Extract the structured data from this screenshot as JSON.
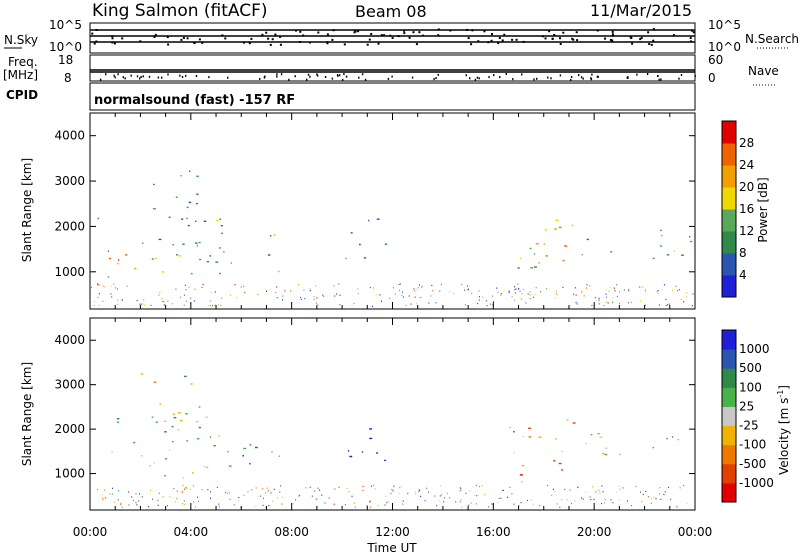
{
  "header": {
    "station": "King Salmon (fitACF)",
    "beam": "Beam 08",
    "date": "11/Mar/2015"
  },
  "top_panels": {
    "nsky_label": "N.Sky",
    "nsky_ticks": [
      "10^5",
      "10^0"
    ],
    "nsearch_label": "N.Search",
    "nsearch_ticks": [
      "10^5",
      "10^0"
    ],
    "freq_label": "Freq.",
    "freq_unit": "[MHz]",
    "freq_ticks": [
      "18",
      "8"
    ],
    "nave_label": "Nave",
    "nave_ticks": [
      "60",
      "0"
    ],
    "cpid_label": "CPID",
    "cpid_text": "normalsound (fast) -157 RF"
  },
  "colors": {
    "power_scale": [
      "#1f1fd8",
      "#2a55b0",
      "#2f8a4a",
      "#5aa85a",
      "#f0d800",
      "#f0a000",
      "#f06400",
      "#e00000"
    ],
    "velocity_scale": [
      "#1f1fd8",
      "#2a55b0",
      "#2f8a4a",
      "#4ab24a",
      "#c8c8c8",
      "#f0b400",
      "#f07800",
      "#e04000",
      "#e00000"
    ]
  },
  "chart_data": [
    {
      "type": "heatmap",
      "title": "",
      "ylabel": "Slant Range [km]",
      "xlabel": "",
      "ylim": [
        180,
        4500
      ],
      "yticks": [
        "1000",
        "2000",
        "3000",
        "4000"
      ],
      "colorbar_label": "Power [dB]",
      "colorbar_ticks": [
        "4",
        "8",
        "12",
        "16",
        "20",
        "24",
        "28"
      ],
      "patches": [
        {
          "t0": 0.3,
          "t1": 5.6,
          "r0": 900,
          "r1": 2300,
          "level": 0.35
        },
        {
          "t0": 0.5,
          "t1": 5.2,
          "r0": 1000,
          "r1": 1400,
          "level": 0.75
        },
        {
          "t0": 2.0,
          "t1": 4.5,
          "r0": 2000,
          "r1": 3300,
          "level": 0.25
        },
        {
          "t0": 6.2,
          "t1": 7.5,
          "r0": 1000,
          "r1": 1900,
          "level": 0.4
        },
        {
          "t0": 10.0,
          "t1": 11.7,
          "r0": 1200,
          "r1": 2200,
          "level": 0.3
        },
        {
          "t0": 16.5,
          "t1": 19.2,
          "r0": 1000,
          "r1": 2300,
          "level": 0.45
        },
        {
          "t0": 17.0,
          "t1": 19.0,
          "r0": 1100,
          "r1": 1700,
          "level": 0.7
        },
        {
          "t0": 19.5,
          "t1": 24.0,
          "r0": 1300,
          "r1": 2000,
          "level": 0.35
        }
      ]
    },
    {
      "type": "heatmap",
      "title": "",
      "ylabel": "Slant Range [km]",
      "xlabel": "Time UT",
      "ylim": [
        180,
        4500
      ],
      "yticks": [
        "1000",
        "2000",
        "3000",
        "4000"
      ],
      "xticks": [
        "00:00",
        "04:00",
        "08:00",
        "12:00",
        "16:00",
        "20:00",
        "00:00"
      ],
      "colorbar_label": "Velocity [m s",
      "colorbar_sup": "-1",
      "colorbar_ticks": [
        "1000",
        "500",
        "100",
        "25",
        "-25",
        "-100",
        "-500",
        "-1000"
      ],
      "patches": [
        {
          "t0": 0.3,
          "t1": 5.6,
          "r0": 900,
          "r1": 2300,
          "level": 0.45
        },
        {
          "t0": 2.0,
          "t1": 4.5,
          "r0": 2000,
          "r1": 3300,
          "level": 0.5
        },
        {
          "t0": 6.0,
          "t1": 7.6,
          "r0": 700,
          "r1": 1900,
          "level": 0.2
        },
        {
          "t0": 10.0,
          "t1": 11.7,
          "r0": 1200,
          "r1": 2200,
          "level": 0.15
        },
        {
          "t0": 16.5,
          "t1": 19.2,
          "r0": 800,
          "r1": 2400,
          "level": 0.7
        },
        {
          "t0": 19.5,
          "t1": 24.0,
          "r0": 1300,
          "r1": 2000,
          "level": 0.45
        }
      ]
    }
  ]
}
